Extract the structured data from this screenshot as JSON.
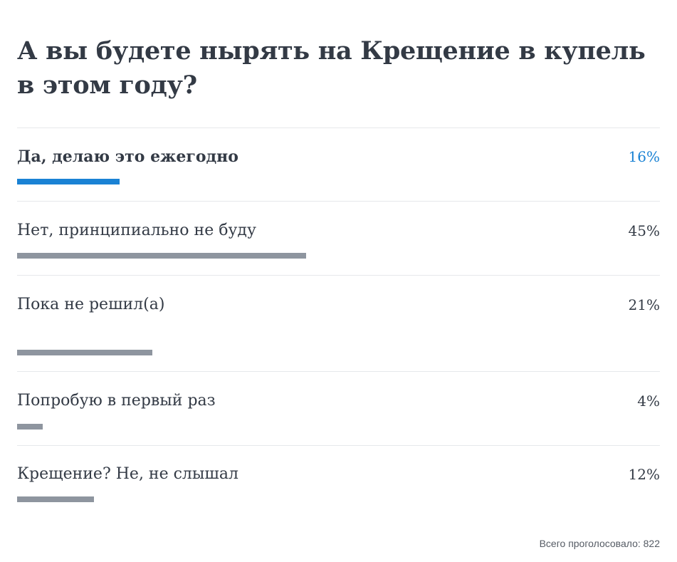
{
  "poll": {
    "question": "А вы будете нырять на Крещение в купель в этом году?",
    "accent_color": "#1a82d4",
    "bar_color": "#8e959f",
    "options": [
      {
        "label": "Да, делаю это ежегодно",
        "percent": 16,
        "percent_label": "16%",
        "selected": true
      },
      {
        "label": "Нет, принципиально не буду",
        "percent": 45,
        "percent_label": "45%",
        "selected": false
      },
      {
        "label": "Пока не решил(а)",
        "percent": 21,
        "percent_label": "21%",
        "selected": false
      },
      {
        "label": "Попробую в первый раз",
        "percent": 4,
        "percent_label": "4%",
        "selected": false
      },
      {
        "label": "Крещение? Не, не слышал",
        "percent": 12,
        "percent_label": "12%",
        "selected": false
      }
    ],
    "total_label": "Всего проголосовало: 822"
  }
}
